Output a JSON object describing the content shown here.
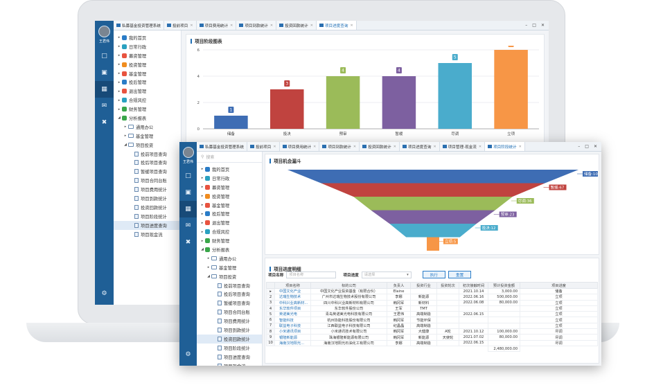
{
  "user": {
    "name": "王君伟"
  },
  "win1": {
    "tabs": [
      {
        "label": "私募基金投资管理系统",
        "active": false,
        "closable": false
      },
      {
        "label": "投前项目",
        "active": false,
        "closable": true
      },
      {
        "label": "项目费用统计",
        "active": false,
        "closable": true
      },
      {
        "label": "项目到款统计",
        "active": false,
        "closable": true
      },
      {
        "label": "投资回款统计",
        "active": false,
        "closable": true
      },
      {
        "label": "项目进度查询",
        "active": true,
        "closable": true
      }
    ],
    "tree": [
      {
        "label": "我的首页",
        "level": 0,
        "kind": "menu",
        "color": "#2a7cc7"
      },
      {
        "label": "日常行政",
        "level": 0,
        "kind": "menu",
        "color": "#2aa1c0"
      },
      {
        "label": "募资管理",
        "level": 0,
        "kind": "menu",
        "color": "#e8533f"
      },
      {
        "label": "投资管理",
        "level": 0,
        "kind": "menu",
        "color": "#f08c1e"
      },
      {
        "label": "基金管理",
        "level": 0,
        "kind": "menu",
        "color": "#e8533f"
      },
      {
        "label": "投后管理",
        "level": 0,
        "kind": "menu",
        "color": "#2a7cc7"
      },
      {
        "label": "退出管理",
        "level": 0,
        "kind": "menu",
        "color": "#e8533f"
      },
      {
        "label": "合规风控",
        "level": 0,
        "kind": "menu",
        "color": "#2aa1c0"
      },
      {
        "label": "财务管理",
        "level": 0,
        "kind": "menu",
        "color": "#3aa64a"
      },
      {
        "label": "分析报表",
        "level": 0,
        "kind": "menu",
        "color": "#3aa64a",
        "open": true
      },
      {
        "label": "通用办公",
        "level": 1,
        "kind": "folder"
      },
      {
        "label": "基金管理",
        "level": 1,
        "kind": "folder"
      },
      {
        "label": "项目投资",
        "level": 1,
        "kind": "folder",
        "open": true
      },
      {
        "label": "投前项目查询",
        "level": 2,
        "kind": "doc"
      },
      {
        "label": "投后项目查询",
        "level": 2,
        "kind": "doc"
      },
      {
        "label": "暂缓项目查询",
        "level": 2,
        "kind": "doc"
      },
      {
        "label": "项目合同台账",
        "level": 2,
        "kind": "doc"
      },
      {
        "label": "项目费用统计",
        "level": 2,
        "kind": "doc"
      },
      {
        "label": "项目到款统计",
        "level": 2,
        "kind": "doc"
      },
      {
        "label": "投资回款统计",
        "level": 2,
        "kind": "doc"
      },
      {
        "label": "项目阶段统计",
        "level": 2,
        "kind": "doc"
      },
      {
        "label": "项目进度查询",
        "level": 2,
        "kind": "doc",
        "selected": true
      },
      {
        "label": "项目现金流",
        "level": 2,
        "kind": "doc"
      }
    ],
    "chart_title": "项目阶段图表",
    "chart_data": {
      "type": "bar",
      "categories": [
        "储备",
        "投决",
        "预审",
        "暂缓",
        "尽调",
        "立项"
      ],
      "values": [
        1,
        3,
        4,
        4,
        5,
        6
      ],
      "colors": [
        "#3e6db4",
        "#c0433f",
        "#9bbb59",
        "#7d60a0",
        "#4aaccc",
        "#f79646"
      ],
      "ylim": [
        0,
        6
      ],
      "yticks": [
        0,
        2,
        4,
        6
      ],
      "grid": true
    }
  },
  "win2": {
    "search_placeholder": "搜索",
    "tabs": [
      {
        "label": "私募基金投资管理系统",
        "active": false,
        "closable": false
      },
      {
        "label": "投前项目",
        "active": false,
        "closable": true
      },
      {
        "label": "项目费用统计",
        "active": false,
        "closable": true
      },
      {
        "label": "项目到款统计",
        "active": false,
        "closable": true
      },
      {
        "label": "投资回款统计",
        "active": false,
        "closable": true
      },
      {
        "label": "项目进度查询",
        "active": false,
        "closable": true
      },
      {
        "label": "项目管理-现金流",
        "active": false,
        "closable": true
      },
      {
        "label": "项目阶段统计",
        "active": true,
        "closable": true
      }
    ],
    "tree": [
      {
        "label": "我的首页",
        "level": 0,
        "kind": "menu",
        "color": "#2a7cc7"
      },
      {
        "label": "日常行政",
        "level": 0,
        "kind": "menu",
        "color": "#2aa1c0"
      },
      {
        "label": "募资管理",
        "level": 0,
        "kind": "menu",
        "color": "#e8533f"
      },
      {
        "label": "投资管理",
        "level": 0,
        "kind": "menu",
        "color": "#f08c1e"
      },
      {
        "label": "基金管理",
        "level": 0,
        "kind": "menu",
        "color": "#e8533f"
      },
      {
        "label": "投后管理",
        "level": 0,
        "kind": "menu",
        "color": "#2a7cc7"
      },
      {
        "label": "退出管理",
        "level": 0,
        "kind": "menu",
        "color": "#e8533f"
      },
      {
        "label": "合规风控",
        "level": 0,
        "kind": "menu",
        "color": "#2aa1c0"
      },
      {
        "label": "财务管理",
        "level": 0,
        "kind": "menu",
        "color": "#3aa64a"
      },
      {
        "label": "分析报表",
        "level": 0,
        "kind": "menu",
        "color": "#3aa64a",
        "open": true
      },
      {
        "label": "通用办公",
        "level": 1,
        "kind": "folder"
      },
      {
        "label": "基金管理",
        "level": 1,
        "kind": "folder"
      },
      {
        "label": "项目投资",
        "level": 1,
        "kind": "folder",
        "open": true
      },
      {
        "label": "投前项目查询",
        "level": 2,
        "kind": "doc"
      },
      {
        "label": "投后项目查询",
        "level": 2,
        "kind": "doc"
      },
      {
        "label": "暂缓项目查询",
        "level": 2,
        "kind": "doc"
      },
      {
        "label": "项目合同台账",
        "level": 2,
        "kind": "doc"
      },
      {
        "label": "项目费用统计",
        "level": 2,
        "kind": "doc"
      },
      {
        "label": "项目到款统计",
        "level": 2,
        "kind": "doc"
      },
      {
        "label": "投资回款统计",
        "level": 2,
        "kind": "doc",
        "selected": true
      },
      {
        "label": "项目阶段统计",
        "level": 2,
        "kind": "doc"
      },
      {
        "label": "项目进度查询",
        "level": 2,
        "kind": "doc"
      },
      {
        "label": "项目现金流",
        "level": 2,
        "kind": "doc"
      }
    ],
    "funnel_title": "项目机会漏斗",
    "funnel_data": {
      "type": "funnel",
      "items": [
        {
          "label": "储备",
          "value": 108,
          "color": "#3e6db4"
        },
        {
          "label": "暂缓",
          "value": 67,
          "color": "#c0433f"
        },
        {
          "label": "尽调",
          "value": 36,
          "color": "#9bbb59"
        },
        {
          "label": "预审",
          "value": 23,
          "color": "#7d60a0"
        },
        {
          "label": "投决",
          "value": 12,
          "color": "#4aaccc"
        },
        {
          "label": "立项",
          "value": 5,
          "color": "#f79646"
        }
      ]
    },
    "detail": {
      "title": "项目进度明细",
      "name_label": "项目名称",
      "name_placeholder": "项目名称",
      "progress_label": "项目进度",
      "progress_placeholder": "请选择",
      "execute": "执行",
      "reset": "重置"
    },
    "table": {
      "headers": [
        "",
        "项目名称",
        "标的公司",
        "负责人",
        "投资行业",
        "投资轮次",
        "初次接触时间",
        "预计投资金额",
        "项目进度"
      ],
      "rows": [
        [
          "中国文化产业",
          "中国文化产业投资基金（有限合伙）",
          "Elaine",
          "",
          "",
          "2021.10.14",
          "3,000.00",
          "储备"
        ],
        [
          "达瑞生物技术",
          "广州市达瑞生物技术股份有限公司",
          "李娜",
          "新能源",
          "",
          "2022.06.16",
          "500,000.00",
          "立项"
        ],
        [
          "中科兴业高新材...",
          "四川中科兴业高新材料有限公司",
          "韩冈军",
          "新材料",
          "",
          "2022.06.08",
          "80,000.00",
          "立项"
        ],
        [
          "东华软件项目",
          "东华软件股份公司",
          "王军",
          "TMT",
          "",
          "",
          "",
          "立项"
        ],
        [
          "英诺美光电",
          "青岛英诺美光电科技有限公司",
          "王君伟",
          "高端制造",
          "",
          "2022.06.15",
          "",
          "立项"
        ],
        [
          "智能科技",
          "杭州协能科技股份有限公司",
          "韩冈军",
          "节能环保",
          "",
          "",
          "",
          "立项"
        ],
        [
          "联益电子科技",
          "江西联益电子科技有限公司",
          "纪晶晶",
          "高端制造",
          "",
          "",
          "",
          "立项"
        ],
        [
          "小米通讯项目",
          "小米通讯技术有限公司",
          "韩冈军",
          "大健康",
          "A轮",
          "2021.10.12",
          "100,000.00",
          "尽调"
        ],
        [
          "银隆新能源",
          "珠海银隆新能源有限公司",
          "韩冈军",
          "新能源",
          "天使轮",
          "2021.07.02",
          "80,000.00",
          "尽调"
        ],
        [
          "海南汉地阳光...",
          "海南汉地阳光石油化工有限公司",
          "李娜",
          "高端制造",
          "",
          "2022.06.15",
          "",
          "尽调"
        ]
      ],
      "total": "2,480,000.00"
    }
  }
}
